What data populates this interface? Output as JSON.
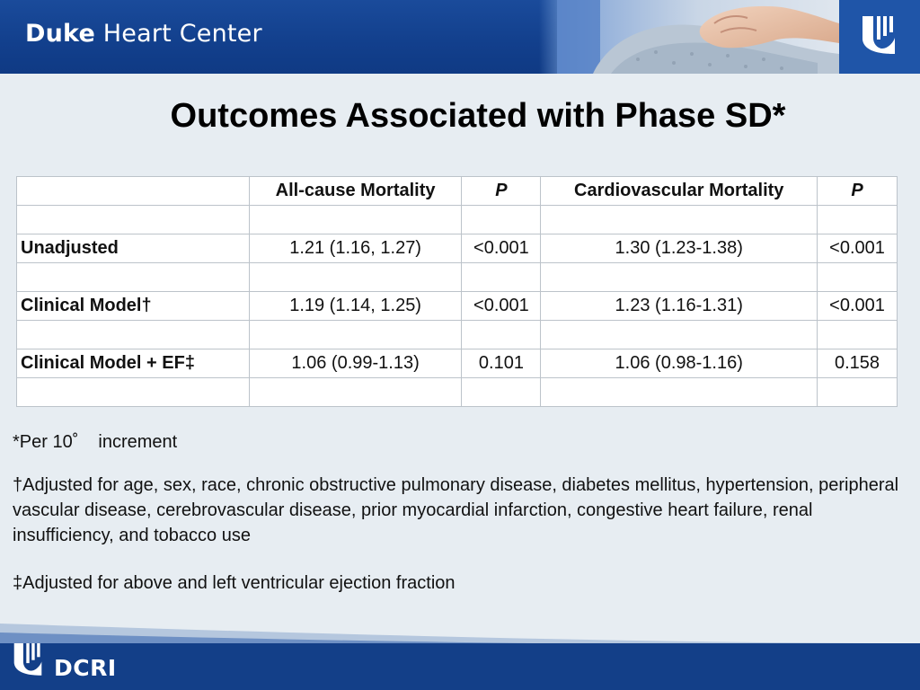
{
  "header": {
    "brand_bold": "Duke",
    "brand_light": "Heart Center",
    "logo_icon": "duke-shield-icon",
    "photo": "patient-shoulder-photo"
  },
  "slide": {
    "title": "Outcomes Associated with Phase SD*"
  },
  "table": {
    "headers": [
      "",
      "All-cause Mortality",
      "P",
      "Cardiovascular Mortality",
      "P"
    ],
    "rows": [
      [
        "",
        "",
        "",
        "",
        ""
      ],
      [
        "Unadjusted",
        "1.21 (1.16, 1.27)",
        "<0.001",
        "1.30 (1.23-1.38)",
        "<0.001"
      ],
      [
        "",
        "",
        "",
        "",
        ""
      ],
      [
        "Clinical Model†",
        "1.19 (1.14, 1.25)",
        "<0.001",
        "1.23 (1.16-1.31)",
        "<0.001"
      ],
      [
        "",
        "",
        "",
        "",
        ""
      ],
      [
        "Clinical Model + EF‡",
        "1.06 (0.99-1.13)",
        "0.101",
        "1.06 (0.98-1.16)",
        "0.158"
      ],
      [
        "",
        "",
        "",
        "",
        ""
      ]
    ]
  },
  "footnotes": {
    "per": "*Per 10˚",
    "per_suffix": "increment",
    "dagger": "†Adjusted for age, sex, race, chronic obstructive pulmonary disease, diabetes mellitus, hypertension, peripheral vascular disease, cerebrovascular disease, prior myocardial infarction, congestive heart failure, renal insufficiency, and tobacco use",
    "double_dagger": "‡Adjusted for above and left ventricular ejection fraction"
  },
  "footer": {
    "org": "DCRI",
    "logo_icon": "duke-shield-icon"
  },
  "colors": {
    "banner": "#123f8c",
    "background": "#e7edf2",
    "footer": "#133f88"
  }
}
